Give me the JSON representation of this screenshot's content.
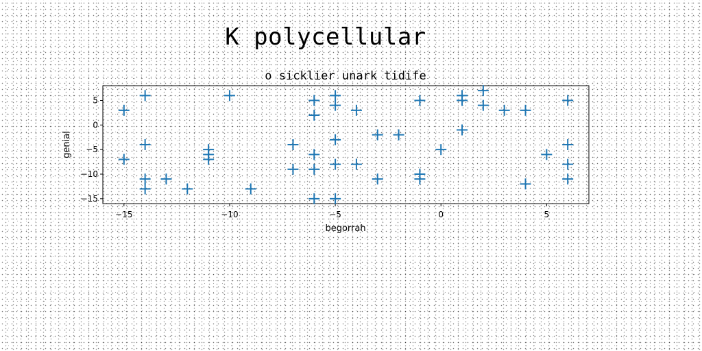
{
  "figure": {
    "title": "K polycellular"
  },
  "chart_data": {
    "type": "scatter",
    "title": "o sicklier unark tidife",
    "xlabel": "begorrah",
    "ylabel": "genial",
    "xlim": [
      -16,
      7
    ],
    "ylim": [
      -16,
      8
    ],
    "xticks": [
      -15,
      -10,
      -5,
      0,
      5
    ],
    "yticks": [
      5,
      0,
      -5,
      -10,
      -15
    ],
    "xtick_labels": [
      "−15",
      "−10",
      "−5",
      "0",
      "5"
    ],
    "ytick_labels": [
      "5",
      "0",
      "−5",
      "−10",
      "−15"
    ],
    "marker": "+",
    "color": "#1f77b4",
    "grid": false,
    "series": [
      {
        "points": [
          [
            -15,
            3
          ],
          [
            -15,
            -7
          ],
          [
            -14,
            6
          ],
          [
            -14,
            -4
          ],
          [
            -14,
            -11
          ],
          [
            -14,
            -13
          ],
          [
            -13,
            -11
          ],
          [
            -12,
            -13
          ],
          [
            -11,
            -5
          ],
          [
            -11,
            -6
          ],
          [
            -11,
            -7
          ],
          [
            -10,
            6
          ],
          [
            -9,
            -13
          ],
          [
            -7,
            -4
          ],
          [
            -7,
            -9
          ],
          [
            -6,
            5
          ],
          [
            -6,
            2
          ],
          [
            -6,
            -6
          ],
          [
            -6,
            -9
          ],
          [
            -6,
            -15
          ],
          [
            -5,
            6
          ],
          [
            -5,
            4
          ],
          [
            -5,
            -3
          ],
          [
            -5,
            -8
          ],
          [
            -5,
            -15
          ],
          [
            -4,
            3
          ],
          [
            -4,
            -8
          ],
          [
            -3,
            -2
          ],
          [
            -3,
            -11
          ],
          [
            -2,
            -2
          ],
          [
            -1,
            5
          ],
          [
            -1,
            -10
          ],
          [
            -1,
            -11
          ],
          [
            0,
            -5
          ],
          [
            1,
            6
          ],
          [
            1,
            5
          ],
          [
            1,
            -1
          ],
          [
            2,
            7
          ],
          [
            2,
            4
          ],
          [
            3,
            3
          ],
          [
            4,
            3
          ],
          [
            4,
            -12
          ],
          [
            5,
            -6
          ],
          [
            6,
            5
          ],
          [
            6,
            -4
          ],
          [
            6,
            -8
          ],
          [
            6,
            -11
          ]
        ]
      }
    ]
  }
}
